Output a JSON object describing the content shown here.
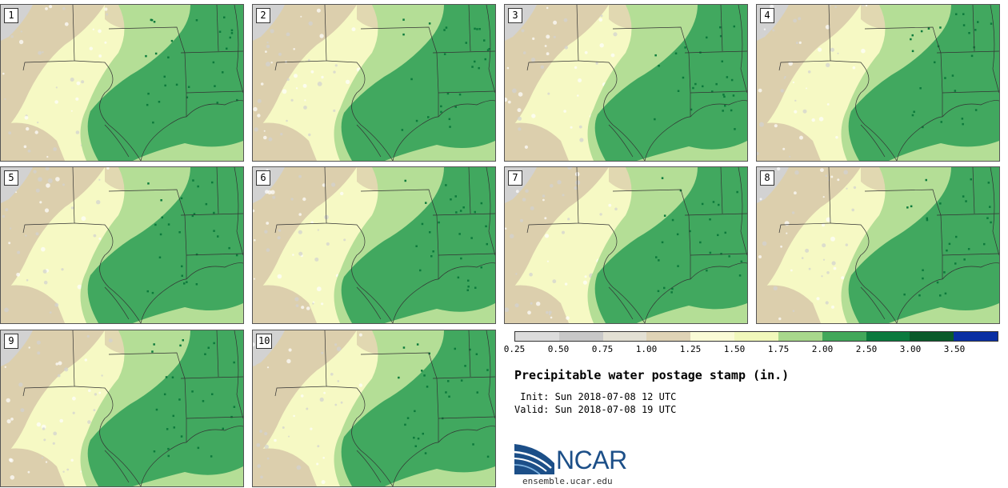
{
  "title": "Precipitable water postage stamp (in.)",
  "init_line": " Init: Sun 2018-07-08 12 UTC",
  "valid_line": "Valid: Sun 2018-07-08 19 UTC",
  "panels": [
    "1",
    "2",
    "3",
    "4",
    "5",
    "6",
    "7",
    "8",
    "9",
    "10"
  ],
  "legend": {
    "ticks": [
      "0.25",
      "0.50",
      "0.75",
      "1.00",
      "1.25",
      "1.50",
      "1.75",
      "2.00",
      "2.50",
      "3.00",
      "3.50"
    ],
    "colors": [
      "#dcdcdc",
      "#c8c8c8",
      "#e3e0d4",
      "#dfd3b6",
      "#fafbd6",
      "#f1f8bb",
      "#a8d88c",
      "#42a85a",
      "#0b7a3e",
      "#0a5a2a",
      "#0a2fa3"
    ]
  },
  "logo": {
    "name": "NCAR",
    "url": "ensemble.ucar.edu",
    "colors": {
      "blue": "#1c4f88",
      "light": "#7fb3e0"
    }
  },
  "map_colors": {
    "bg": "#f6f9c4",
    "tan": "#dccfad",
    "gray": "#d2d2d2",
    "light_green": "#b4de96",
    "green": "#41a85f",
    "dark_green": "#0d7a3c",
    "border": "#333333"
  }
}
